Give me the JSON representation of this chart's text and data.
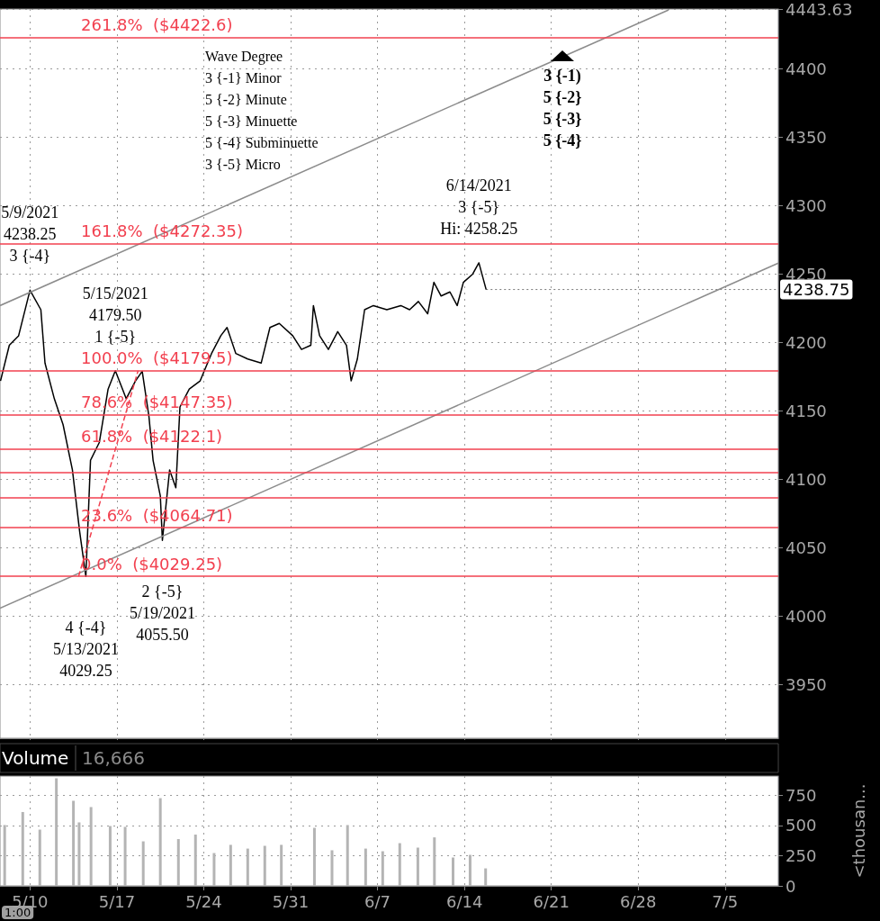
{
  "chart_data": [
    {
      "type": "line",
      "marker": "none",
      "grid": true,
      "tick_labels": "y",
      "xlim": [
        "2021-05-07T14:00",
        "2021-07-09T07:00"
      ],
      "xticks": [
        {
          "value": "2021-05-10",
          "label": null
        },
        {
          "value": "2021-05-17",
          "label": null
        },
        {
          "value": "2021-05-24",
          "label": null
        },
        {
          "value": "2021-05-31",
          "label": null
        },
        {
          "value": "2021-06-07",
          "label": null
        },
        {
          "value": "2021-06-14",
          "label": null
        },
        {
          "value": "2021-06-21",
          "label": null
        },
        {
          "value": "2021-06-28",
          "label": null
        },
        {
          "value": "2021-07-05",
          "label": null
        }
      ],
      "ylim": [
        3911,
        4443.63
      ],
      "yticks": [
        3950,
        4000,
        4050,
        4100,
        4150,
        4200,
        4250,
        4300,
        4350,
        4400,
        4443.63
      ],
      "series": [
        {
          "color": "#000000",
          "x": [
            "2021-05-07T15:00",
            "2021-05-08T08:00",
            "2021-05-09T02:00",
            "2021-05-10T00:00",
            "2021-05-10T21:00",
            "2021-05-11T05:00",
            "2021-05-11T23:00",
            "2021-05-12T16:00",
            "2021-05-13T10:00",
            "2021-05-14T00:00",
            "2021-05-14T12:00",
            "2021-05-14T21:00",
            "2021-05-15T14:00",
            "2021-05-16T07:00",
            "2021-05-16T21:00",
            "2021-05-17T18:00",
            "2021-05-18T12:00",
            "2021-05-19T01:00",
            "2021-05-19T14:00",
            "2021-05-19T22:00",
            "2021-05-20T12:00",
            "2021-05-20T16:00",
            "2021-05-21T06:00",
            "2021-05-21T18:00",
            "2021-05-22T02:00",
            "2021-05-22T20:00",
            "2021-05-23T17:00",
            "2021-05-24T15:00",
            "2021-05-25T09:00",
            "2021-05-25T21:00",
            "2021-05-26T14:00",
            "2021-05-27T13:00",
            "2021-05-28T15:00",
            "2021-05-29T08:00",
            "2021-05-30T02:00",
            "2021-05-31T04:00",
            "2021-05-31T21:00",
            "2021-06-01T15:00",
            "2021-06-01T20:00",
            "2021-06-02T08:00",
            "2021-06-03T01:00",
            "2021-06-03T19:00",
            "2021-06-04T12:00",
            "2021-06-04T21:00",
            "2021-06-05T09:00",
            "2021-06-05T23:00",
            "2021-06-06T16:00",
            "2021-06-07T18:00",
            "2021-06-08T21:00",
            "2021-06-09T14:00",
            "2021-06-10T07:00",
            "2021-06-11T01:00",
            "2021-06-11T13:00",
            "2021-06-12T03:00",
            "2021-06-12T20:00",
            "2021-06-13T10:00",
            "2021-06-13T22:00",
            "2021-06-14T16:00",
            "2021-06-15T04:00",
            "2021-06-15T18:00"
          ],
          "values": [
            4172,
            4198,
            4205,
            4238.25,
            4224,
            4185,
            4159,
            4140,
            4107,
            4062,
            4029.25,
            4114,
            4127,
            4166,
            4179.5,
            4159,
            4172,
            4179,
            4146,
            4114,
            4088,
            4055.5,
            4107,
            4094,
            4153,
            4166,
            4172,
            4192,
            4205,
            4211,
            4192,
            4188,
            4185,
            4211,
            4214,
            4205,
            4195,
            4198,
            4227,
            4205,
            4195,
            4208,
            4198,
            4172,
            4188,
            4224,
            4227,
            4224,
            4227,
            4224,
            4230,
            4221,
            4244,
            4234,
            4237,
            4227,
            4244,
            4250,
            4258.25,
            4238.75
          ]
        },
        {
          "color": "#8c8c8c",
          "x": [
            "2021-05-07T14:00",
            "2021-06-30T11:00"
          ],
          "values": [
            4227,
            4443
          ]
        },
        {
          "color": "#8c8c8c",
          "x": [
            "2021-05-07T14:00",
            "2021-07-09T07:00"
          ],
          "values": [
            4006,
            4258
          ]
        },
        {
          "color": "#f2404f",
          "line_style": "dashed",
          "x": [
            "2021-05-13T22:00",
            "2021-05-18T17:00"
          ],
          "values": [
            4029.25,
            4179.5
          ]
        }
      ],
      "ref_lines": [
        {
          "axis": "y",
          "value": 4422.6,
          "label": "261.8%  ($4422.6)",
          "color": "#f2404f"
        },
        {
          "axis": "y",
          "value": 4272.35,
          "label": "161.8%  ($4272.35)",
          "color": "#f2404f"
        },
        {
          "axis": "y",
          "value": 4179.5,
          "label": "100.0%  ($4179.5)",
          "color": "#f2404f"
        },
        {
          "axis": "y",
          "value": 4147.35,
          "label": "78.6%  ($4147.35)",
          "color": "#f2404f"
        },
        {
          "axis": "y",
          "value": 4122.1,
          "label": "61.8%  ($4122.1)",
          "color": "#f2404f"
        },
        {
          "axis": "y",
          "value": 4105,
          "label": null,
          "color": "#f2404f"
        },
        {
          "axis": "y",
          "value": 4087,
          "label": null,
          "color": "#f2404f"
        },
        {
          "axis": "y",
          "value": 4064.71,
          "label": "23.6%  ($4064.71)",
          "color": "#f2404f"
        },
        {
          "axis": "y",
          "value": 4029.25,
          "label": "0.0%  ($4029.25)",
          "color": "#f2404f"
        }
      ],
      "annotations": [
        "Wave Degree\n3 {-1} Minor\n5 {-2} Minute\n5 {-3} Minuette\n5 {-4} Subminuette\n3 {-5} Micro",
        "3 {-1)\n5 {-2}\n5 {-3}\n5 {-4}",
        {
          "text": "5/9/2021\n4238.25\n3 {-4}",
          "x": "2021-05-10T00:00",
          "y": 4238.25
        },
        {
          "text": "5/15/2021\n4179.50\n1 {-5}",
          "x": "2021-05-16T21:00",
          "y": 4179.5
        },
        {
          "text": "4 {-4}\n5/13/2021\n4029.25",
          "x": "2021-05-14T12:00",
          "y": 4029.25
        },
        {
          "text": "2 {-5}\n5/19/2021\n4055.50",
          "x": "2021-05-20T16:00",
          "y": 4055.5
        },
        {
          "text": "6/14/2021\n3 {-5}\nHi: 4258.25",
          "x": "2021-06-15T04:00",
          "y": 4258.25
        },
        {
          "text": "4238.75",
          "x": "2021-06-15T18:00",
          "y": 4238.75
        }
      ]
    },
    {
      "type": "bar",
      "title": "Volume",
      "subtitle": "16,666",
      "ylabel": "<thousan...",
      "color": "#b4b4b4",
      "grid": true,
      "xlim": [
        "2021-05-07T14:00",
        "2021-07-09T07:00"
      ],
      "xticks": [
        {
          "value": "2021-05-10",
          "label": "5/10"
        },
        {
          "value": "2021-05-17",
          "label": "5/17"
        },
        {
          "value": "2021-05-24",
          "label": "5/24"
        },
        {
          "value": "2021-05-31",
          "label": "5/31"
        },
        {
          "value": "2021-06-07",
          "label": "6/7"
        },
        {
          "value": "2021-06-14",
          "label": "6/14"
        },
        {
          "value": "2021-06-21",
          "label": "6/21"
        },
        {
          "value": "2021-06-28",
          "label": "6/28"
        },
        {
          "value": "2021-07-05",
          "label": "7/5"
        }
      ],
      "ylim": [
        0,
        910
      ],
      "yticks": [
        0,
        250,
        500,
        750
      ],
      "x": [
        "2021-05-07T23:00",
        "2021-05-09T10:00",
        "2021-05-10T19:00",
        "2021-05-12T03:00",
        "2021-05-13T12:00",
        "2021-05-13T23:00",
        "2021-05-14T22:00",
        "2021-05-16T11:00",
        "2021-05-17T16:00",
        "2021-05-19T03:00",
        "2021-05-20T12:00",
        "2021-05-21T23:00",
        "2021-05-23T08:00",
        "2021-05-24T20:00",
        "2021-05-26T04:00",
        "2021-05-27T13:00",
        "2021-05-28T22:00",
        "2021-05-30T06:00",
        "2021-06-01T22:00",
        "2021-06-03T08:00",
        "2021-06-04T14:00",
        "2021-06-06T01:00",
        "2021-06-07T10:00",
        "2021-06-08T19:00",
        "2021-06-10T06:00",
        "2021-06-11T14:00",
        "2021-06-13T02:00",
        "2021-06-14T11:00",
        "2021-06-15T17:00"
      ],
      "values": [
        504,
        612,
        466,
        891,
        705,
        526,
        653,
        496,
        489,
        369,
        727,
        388,
        425,
        272,
        340,
        309,
        332,
        340,
        481,
        295,
        504,
        309,
        287,
        354,
        317,
        402,
        235,
        257,
        145
      ],
      "annotations": [
        "1:00"
      ]
    }
  ]
}
